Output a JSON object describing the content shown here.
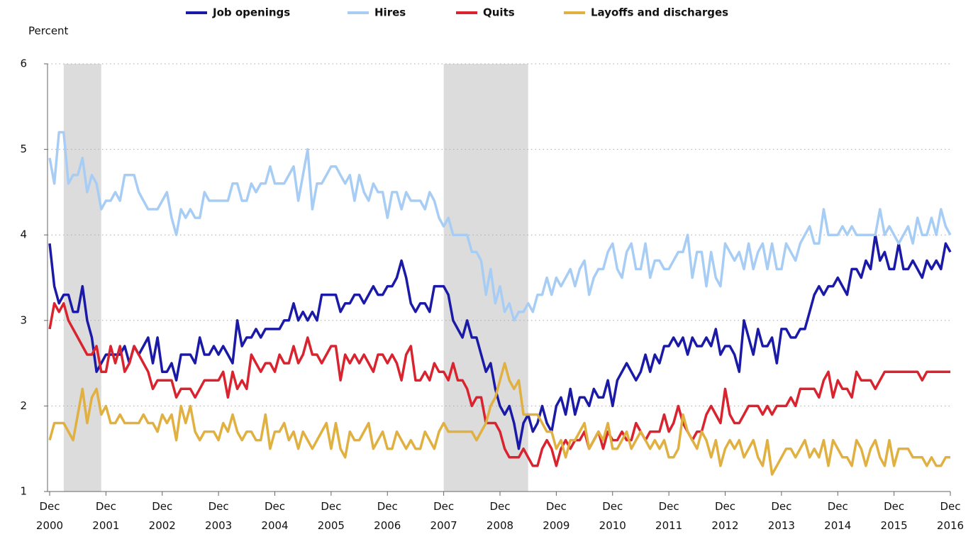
{
  "chart_data": {
    "type": "line",
    "y_label": "Percent",
    "x": [
      "2000-12",
      "2001-01",
      "2001-02",
      "2001-03",
      "2001-04",
      "2001-05",
      "2001-06",
      "2001-07",
      "2001-08",
      "2001-09",
      "2001-10",
      "2001-11",
      "2001-12",
      "2002-01",
      "2002-02",
      "2002-03",
      "2002-04",
      "2002-05",
      "2002-06",
      "2002-07",
      "2002-08",
      "2002-09",
      "2002-10",
      "2002-11",
      "2002-12",
      "2003-01",
      "2003-02",
      "2003-03",
      "2003-04",
      "2003-05",
      "2003-06",
      "2003-07",
      "2003-08",
      "2003-09",
      "2003-10",
      "2003-11",
      "2003-12",
      "2004-01",
      "2004-02",
      "2004-03",
      "2004-04",
      "2004-05",
      "2004-06",
      "2004-07",
      "2004-08",
      "2004-09",
      "2004-10",
      "2004-11",
      "2004-12",
      "2005-01",
      "2005-02",
      "2005-03",
      "2005-04",
      "2005-05",
      "2005-06",
      "2005-07",
      "2005-08",
      "2005-09",
      "2005-10",
      "2005-11",
      "2005-12",
      "2006-01",
      "2006-02",
      "2006-03",
      "2006-04",
      "2006-05",
      "2006-06",
      "2006-07",
      "2006-08",
      "2006-09",
      "2006-10",
      "2006-11",
      "2006-12",
      "2007-01",
      "2007-02",
      "2007-03",
      "2007-04",
      "2007-05",
      "2007-06",
      "2007-07",
      "2007-08",
      "2007-09",
      "2007-10",
      "2007-11",
      "2007-12",
      "2008-01",
      "2008-02",
      "2008-03",
      "2008-04",
      "2008-05",
      "2008-06",
      "2008-07",
      "2008-08",
      "2008-09",
      "2008-10",
      "2008-11",
      "2008-12",
      "2009-01",
      "2009-02",
      "2009-03",
      "2009-04",
      "2009-05",
      "2009-06",
      "2009-07",
      "2009-08",
      "2009-09",
      "2009-10",
      "2009-11",
      "2009-12",
      "2010-01",
      "2010-02",
      "2010-03",
      "2010-04",
      "2010-05",
      "2010-06",
      "2010-07",
      "2010-08",
      "2010-09",
      "2010-10",
      "2010-11",
      "2010-12",
      "2011-01",
      "2011-02",
      "2011-03",
      "2011-04",
      "2011-05",
      "2011-06",
      "2011-07",
      "2011-08",
      "2011-09",
      "2011-10",
      "2011-11",
      "2011-12",
      "2012-01",
      "2012-02",
      "2012-03",
      "2012-04",
      "2012-05",
      "2012-06",
      "2012-07",
      "2012-08",
      "2012-09",
      "2012-10",
      "2012-11",
      "2012-12",
      "2013-01",
      "2013-02",
      "2013-03",
      "2013-04",
      "2013-05",
      "2013-06",
      "2013-07",
      "2013-08",
      "2013-09",
      "2013-10",
      "2013-11",
      "2013-12",
      "2014-01",
      "2014-02",
      "2014-03",
      "2014-04",
      "2014-05",
      "2014-06",
      "2014-07",
      "2014-08",
      "2014-09",
      "2014-10",
      "2014-11",
      "2014-12",
      "2015-01",
      "2015-02",
      "2015-03",
      "2015-04",
      "2015-05",
      "2015-06",
      "2015-07",
      "2015-08",
      "2015-09",
      "2015-10",
      "2015-11",
      "2015-12",
      "2016-01",
      "2016-02",
      "2016-03",
      "2016-04",
      "2016-05",
      "2016-06",
      "2016-07",
      "2016-08",
      "2016-09",
      "2016-10",
      "2016-11",
      "2016-12"
    ],
    "series": [
      {
        "name": "Job openings",
        "color": "#1a1aa6",
        "values": [
          3.9,
          3.4,
          3.2,
          3.3,
          3.3,
          3.1,
          3.1,
          3.4,
          3.0,
          2.8,
          2.4,
          2.5,
          2.6,
          2.6,
          2.6,
          2.6,
          2.7,
          2.5,
          2.7,
          2.6,
          2.7,
          2.8,
          2.5,
          2.8,
          2.4,
          2.4,
          2.5,
          2.3,
          2.6,
          2.6,
          2.6,
          2.5,
          2.8,
          2.6,
          2.6,
          2.7,
          2.6,
          2.7,
          2.6,
          2.5,
          3.0,
          2.7,
          2.8,
          2.8,
          2.9,
          2.8,
          2.9,
          2.9,
          2.9,
          2.9,
          3.0,
          3.0,
          3.2,
          3.0,
          3.1,
          3.0,
          3.1,
          3.0,
          3.3,
          3.3,
          3.3,
          3.3,
          3.1,
          3.2,
          3.2,
          3.3,
          3.3,
          3.2,
          3.3,
          3.4,
          3.3,
          3.3,
          3.4,
          3.4,
          3.5,
          3.7,
          3.5,
          3.2,
          3.1,
          3.2,
          3.2,
          3.1,
          3.4,
          3.4,
          3.4,
          3.3,
          3.0,
          2.9,
          2.8,
          3.0,
          2.8,
          2.8,
          2.6,
          2.4,
          2.5,
          2.2,
          2.0,
          1.9,
          2.0,
          1.8,
          1.5,
          1.8,
          1.9,
          1.7,
          1.8,
          2.0,
          1.8,
          1.7,
          2.0,
          2.1,
          1.9,
          2.2,
          1.9,
          2.1,
          2.1,
          2.0,
          2.2,
          2.1,
          2.1,
          2.3,
          2.0,
          2.3,
          2.4,
          2.5,
          2.4,
          2.3,
          2.4,
          2.6,
          2.4,
          2.6,
          2.5,
          2.7,
          2.7,
          2.8,
          2.7,
          2.8,
          2.6,
          2.8,
          2.7,
          2.7,
          2.8,
          2.7,
          2.9,
          2.6,
          2.7,
          2.7,
          2.6,
          2.4,
          3.0,
          2.8,
          2.6,
          2.9,
          2.7,
          2.7,
          2.8,
          2.5,
          2.9,
          2.9,
          2.8,
          2.8,
          2.9,
          2.9,
          3.1,
          3.3,
          3.4,
          3.3,
          3.4,
          3.4,
          3.5,
          3.4,
          3.3,
          3.6,
          3.6,
          3.5,
          3.7,
          3.6,
          4.0,
          3.7,
          3.8,
          3.6,
          3.6,
          3.9,
          3.6,
          3.6,
          3.7,
          3.6,
          3.5,
          3.7,
          3.6,
          3.7,
          3.6,
          3.9,
          3.8
        ]
      },
      {
        "name": "Hires",
        "color": "#a8cdf5",
        "values": [
          4.9,
          4.6,
          5.2,
          5.2,
          4.6,
          4.7,
          4.7,
          4.9,
          4.5,
          4.7,
          4.6,
          4.3,
          4.4,
          4.4,
          4.5,
          4.4,
          4.7,
          4.7,
          4.7,
          4.5,
          4.4,
          4.3,
          4.3,
          4.3,
          4.4,
          4.5,
          4.2,
          4.0,
          4.3,
          4.2,
          4.3,
          4.2,
          4.2,
          4.5,
          4.4,
          4.4,
          4.4,
          4.4,
          4.4,
          4.6,
          4.6,
          4.4,
          4.4,
          4.6,
          4.5,
          4.6,
          4.6,
          4.8,
          4.6,
          4.6,
          4.6,
          4.7,
          4.8,
          4.4,
          4.7,
          5.0,
          4.3,
          4.6,
          4.6,
          4.7,
          4.8,
          4.8,
          4.7,
          4.6,
          4.7,
          4.4,
          4.7,
          4.5,
          4.4,
          4.6,
          4.5,
          4.5,
          4.2,
          4.5,
          4.5,
          4.3,
          4.5,
          4.4,
          4.4,
          4.4,
          4.3,
          4.5,
          4.4,
          4.2,
          4.1,
          4.2,
          4.0,
          4.0,
          4.0,
          4.0,
          3.8,
          3.8,
          3.7,
          3.3,
          3.6,
          3.2,
          3.4,
          3.1,
          3.2,
          3.0,
          3.1,
          3.1,
          3.2,
          3.1,
          3.3,
          3.3,
          3.5,
          3.3,
          3.5,
          3.4,
          3.5,
          3.6,
          3.4,
          3.6,
          3.7,
          3.3,
          3.5,
          3.6,
          3.6,
          3.8,
          3.9,
          3.6,
          3.5,
          3.8,
          3.9,
          3.6,
          3.6,
          3.9,
          3.5,
          3.7,
          3.7,
          3.6,
          3.6,
          3.7,
          3.8,
          3.8,
          4.0,
          3.5,
          3.8,
          3.8,
          3.4,
          3.8,
          3.5,
          3.4,
          3.9,
          3.8,
          3.7,
          3.8,
          3.6,
          3.9,
          3.6,
          3.8,
          3.9,
          3.6,
          3.9,
          3.6,
          3.6,
          3.9,
          3.8,
          3.7,
          3.9,
          4.0,
          4.1,
          3.9,
          3.9,
          4.3,
          4.0,
          4.0,
          4.0,
          4.1,
          4.0,
          4.1,
          4.0,
          4.0,
          4.0,
          4.0,
          4.0,
          4.3,
          4.0,
          4.1,
          4.0,
          3.9,
          4.0,
          4.1,
          3.9,
          4.2,
          4.0,
          4.0,
          4.2,
          4.0,
          4.3,
          4.1,
          4.0
        ]
      },
      {
        "name": "Quits",
        "color": "#d9232e",
        "values": [
          2.9,
          3.2,
          3.1,
          3.2,
          3.0,
          2.9,
          2.8,
          2.7,
          2.6,
          2.6,
          2.7,
          2.4,
          2.4,
          2.7,
          2.5,
          2.7,
          2.4,
          2.5,
          2.7,
          2.6,
          2.5,
          2.4,
          2.2,
          2.3,
          2.3,
          2.3,
          2.3,
          2.1,
          2.2,
          2.2,
          2.2,
          2.1,
          2.2,
          2.3,
          2.3,
          2.3,
          2.3,
          2.4,
          2.1,
          2.4,
          2.2,
          2.3,
          2.2,
          2.6,
          2.5,
          2.4,
          2.5,
          2.5,
          2.4,
          2.6,
          2.5,
          2.5,
          2.7,
          2.5,
          2.6,
          2.8,
          2.6,
          2.6,
          2.5,
          2.6,
          2.7,
          2.7,
          2.3,
          2.6,
          2.5,
          2.6,
          2.5,
          2.6,
          2.5,
          2.4,
          2.6,
          2.6,
          2.5,
          2.6,
          2.5,
          2.3,
          2.6,
          2.7,
          2.3,
          2.3,
          2.4,
          2.3,
          2.5,
          2.4,
          2.4,
          2.3,
          2.5,
          2.3,
          2.3,
          2.2,
          2.0,
          2.1,
          2.1,
          1.8,
          1.8,
          1.8,
          1.7,
          1.5,
          1.4,
          1.4,
          1.4,
          1.5,
          1.4,
          1.3,
          1.3,
          1.5,
          1.6,
          1.5,
          1.3,
          1.5,
          1.6,
          1.5,
          1.6,
          1.6,
          1.7,
          1.5,
          1.6,
          1.7,
          1.5,
          1.7,
          1.6,
          1.6,
          1.7,
          1.6,
          1.6,
          1.8,
          1.7,
          1.6,
          1.7,
          1.7,
          1.7,
          1.9,
          1.7,
          1.8,
          2.0,
          1.8,
          1.7,
          1.6,
          1.7,
          1.7,
          1.9,
          2.0,
          1.9,
          1.8,
          2.2,
          1.9,
          1.8,
          1.8,
          1.9,
          2.0,
          2.0,
          2.0,
          1.9,
          2.0,
          1.9,
          2.0,
          2.0,
          2.0,
          2.1,
          2.0,
          2.2,
          2.2,
          2.2,
          2.2,
          2.1,
          2.3,
          2.4,
          2.1,
          2.3,
          2.2,
          2.2,
          2.1,
          2.4,
          2.3,
          2.3,
          2.3,
          2.2,
          2.3,
          2.4,
          2.4,
          2.4,
          2.4,
          2.4,
          2.4,
          2.4,
          2.4,
          2.3,
          2.4,
          2.4,
          2.4,
          2.4,
          2.4,
          2.4
        ]
      },
      {
        "name": "Layoffs and discharges",
        "color": "#e0b040",
        "values": [
          1.6,
          1.8,
          1.8,
          1.8,
          1.7,
          1.6,
          1.9,
          2.2,
          1.8,
          2.1,
          2.2,
          1.9,
          2.0,
          1.8,
          1.8,
          1.9,
          1.8,
          1.8,
          1.8,
          1.8,
          1.9,
          1.8,
          1.8,
          1.7,
          1.9,
          1.8,
          1.9,
          1.6,
          2.0,
          1.8,
          2.0,
          1.7,
          1.6,
          1.7,
          1.7,
          1.7,
          1.6,
          1.8,
          1.7,
          1.9,
          1.7,
          1.6,
          1.7,
          1.7,
          1.6,
          1.6,
          1.9,
          1.5,
          1.7,
          1.7,
          1.8,
          1.6,
          1.7,
          1.5,
          1.7,
          1.6,
          1.5,
          1.6,
          1.7,
          1.8,
          1.5,
          1.8,
          1.5,
          1.4,
          1.7,
          1.6,
          1.6,
          1.7,
          1.8,
          1.5,
          1.6,
          1.7,
          1.5,
          1.5,
          1.7,
          1.6,
          1.5,
          1.6,
          1.5,
          1.5,
          1.7,
          1.6,
          1.5,
          1.7,
          1.8,
          1.7,
          1.7,
          1.7,
          1.7,
          1.7,
          1.7,
          1.6,
          1.7,
          1.8,
          2.0,
          2.1,
          2.3,
          2.5,
          2.3,
          2.2,
          2.3,
          1.9,
          1.9,
          1.9,
          1.9,
          1.8,
          1.7,
          1.7,
          1.5,
          1.6,
          1.4,
          1.6,
          1.6,
          1.7,
          1.8,
          1.5,
          1.6,
          1.7,
          1.6,
          1.8,
          1.5,
          1.5,
          1.6,
          1.7,
          1.5,
          1.6,
          1.7,
          1.6,
          1.5,
          1.6,
          1.5,
          1.6,
          1.4,
          1.4,
          1.5,
          1.9,
          1.7,
          1.6,
          1.5,
          1.7,
          1.6,
          1.4,
          1.6,
          1.3,
          1.5,
          1.6,
          1.5,
          1.6,
          1.4,
          1.5,
          1.6,
          1.4,
          1.3,
          1.6,
          1.2,
          1.3,
          1.4,
          1.5,
          1.5,
          1.4,
          1.5,
          1.6,
          1.4,
          1.5,
          1.4,
          1.6,
          1.3,
          1.6,
          1.5,
          1.4,
          1.4,
          1.3,
          1.6,
          1.5,
          1.3,
          1.5,
          1.6,
          1.4,
          1.3,
          1.6,
          1.3,
          1.5,
          1.5,
          1.5,
          1.4,
          1.4,
          1.4,
          1.3,
          1.4,
          1.3,
          1.3,
          1.4,
          1.4
        ]
      }
    ],
    "recessions": [
      [
        "2001-03",
        "2001-11"
      ],
      [
        "2007-12",
        "2009-06"
      ]
    ],
    "recession_color": "#dcdcdc",
    "ylim": [
      1,
      6
    ],
    "yticks": [
      1,
      2,
      3,
      4,
      5,
      6
    ],
    "grid": true,
    "xlim": [
      "2000-12",
      "2016-12"
    ],
    "xticks": [
      {
        "value": "2000-12",
        "label": "Dec 2000"
      },
      {
        "value": "2001-12",
        "label": "Dec 2001"
      },
      {
        "value": "2002-12",
        "label": "Dec 2002"
      },
      {
        "value": "2003-12",
        "label": "Dec 2003"
      },
      {
        "value": "2004-12",
        "label": "Dec 2004"
      },
      {
        "value": "2005-12",
        "label": "Dec 2005"
      },
      {
        "value": "2006-12",
        "label": "Dec 2006"
      },
      {
        "value": "2007-12",
        "label": "Dec 2007"
      },
      {
        "value": "2008-12",
        "label": "Dec 2008"
      },
      {
        "value": "2009-12",
        "label": "Dec 2009"
      },
      {
        "value": "2010-12",
        "label": "Dec 2010"
      },
      {
        "value": "2011-12",
        "label": "Dec 2011"
      },
      {
        "value": "2012-12",
        "label": "Dec 2012"
      },
      {
        "value": "2013-12",
        "label": "Dec 2013"
      },
      {
        "value": "2014-12",
        "label": "Dec 2014"
      },
      {
        "value": "2015-12",
        "label": "Dec 2015"
      },
      {
        "value": "2016-12",
        "label": "Dec 2016"
      }
    ],
    "legend": "top"
  }
}
